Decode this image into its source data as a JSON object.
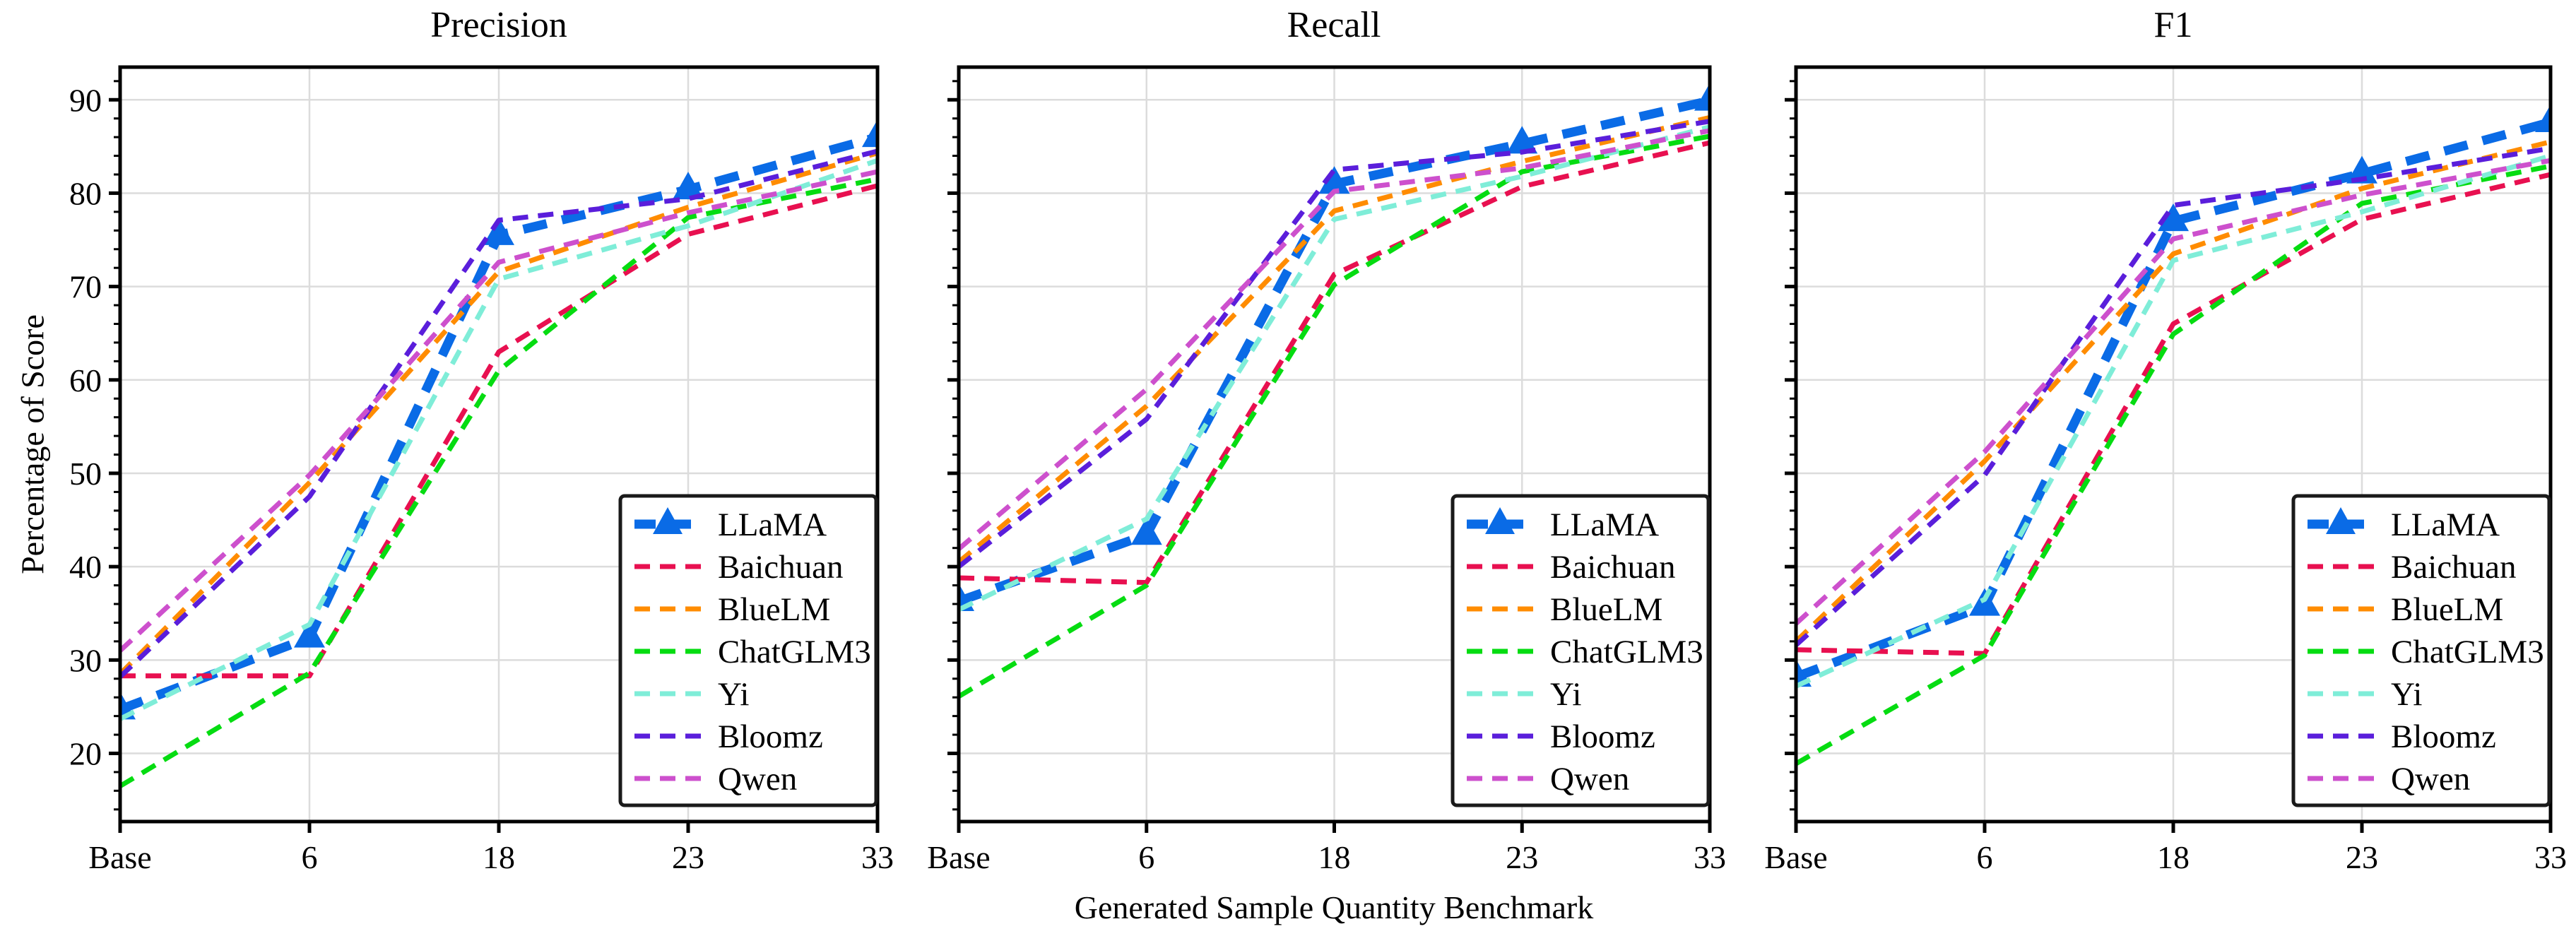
{
  "figure": {
    "background": "#FFFFFF"
  },
  "labels": {
    "ylabel": "Percentage of Score",
    "xlabel": "Generated Sample Quantity Benchmark"
  },
  "axes": {
    "categories": [
      "Base",
      "6",
      "18",
      "23",
      "33"
    ],
    "y_ticks": [
      20,
      30,
      40,
      50,
      60,
      70,
      80,
      90
    ],
    "ylim": [
      12.7,
      93.5
    ],
    "minor_tick_step": 2,
    "grid": true,
    "grid_color": "#DCDCDC",
    "axis_color": "#000000"
  },
  "legend": {
    "position": "lower right",
    "entries": [
      "LLaMA",
      "Baichuan",
      "BlueLM",
      "ChatGLM3",
      "Yi",
      "Bloomz",
      "Qwen"
    ],
    "border_color": "#1A1A1A"
  },
  "series_styles": [
    {
      "name": "LLaMA",
      "color": "#0A6BE6",
      "dash": "long",
      "thick": true,
      "marker": "triangle-up"
    },
    {
      "name": "Baichuan",
      "color": "#E81050",
      "dash": "normal",
      "thick": false,
      "marker": "none"
    },
    {
      "name": "BlueLM",
      "color": "#FF8C00",
      "dash": "normal",
      "thick": false,
      "marker": "none"
    },
    {
      "name": "ChatGLM3",
      "color": "#05DC11",
      "dash": "normal",
      "thick": false,
      "marker": "none"
    },
    {
      "name": "Yi",
      "color": "#7FEDD8",
      "dash": "normal",
      "thick": false,
      "marker": "none"
    },
    {
      "name": "Bloomz",
      "color": "#5A1EDB",
      "dash": "normal",
      "thick": false,
      "marker": "none"
    },
    {
      "name": "Qwen",
      "color": "#CD50CD",
      "dash": "normal",
      "thick": false,
      "marker": "none"
    }
  ],
  "chart_data": [
    {
      "type": "line",
      "title": "Precision",
      "xlabel": "",
      "ylabel": "Percentage of Score",
      "x": [
        "Base",
        "6",
        "18",
        "23",
        "33"
      ],
      "ylim": [
        12.7,
        93.5
      ],
      "series": [
        {
          "name": "LLaMA",
          "values": [
            24.7,
            32.4,
            75.5,
            80.4,
            86.0
          ]
        },
        {
          "name": "Baichuan",
          "values": [
            28.3,
            28.3,
            63.0,
            75.6,
            80.8
          ]
        },
        {
          "name": "BlueLM",
          "values": [
            28.5,
            49.0,
            71.6,
            78.5,
            84.3
          ]
        },
        {
          "name": "ChatGLM3",
          "values": [
            16.5,
            28.6,
            61.0,
            77.4,
            81.5
          ]
        },
        {
          "name": "Yi",
          "values": [
            23.7,
            33.8,
            70.8,
            76.5,
            83.5
          ]
        },
        {
          "name": "Bloomz",
          "values": [
            28.2,
            47.5,
            77.1,
            79.4,
            84.5
          ]
        },
        {
          "name": "Qwen",
          "values": [
            31.0,
            49.8,
            72.6,
            77.9,
            82.3
          ]
        }
      ]
    },
    {
      "type": "line",
      "title": "Recall",
      "xlabel": "Generated Sample Quantity Benchmark",
      "ylabel": "",
      "x": [
        "Base",
        "6",
        "18",
        "23",
        "33"
      ],
      "ylim": [
        12.7,
        93.5
      ],
      "series": [
        {
          "name": "LLaMA",
          "values": [
            36.3,
            43.4,
            81.0,
            85.3,
            89.9
          ]
        },
        {
          "name": "Baichuan",
          "values": [
            38.8,
            38.3,
            71.3,
            80.7,
            85.4
          ]
        },
        {
          "name": "BlueLM",
          "values": [
            40.5,
            57.2,
            78.1,
            83.4,
            88.1
          ]
        },
        {
          "name": "ChatGLM3",
          "values": [
            26.1,
            38.0,
            70.2,
            82.3,
            86.1
          ]
        },
        {
          "name": "Yi",
          "values": [
            35.4,
            45.1,
            77.2,
            81.8,
            87.1
          ]
        },
        {
          "name": "Bloomz",
          "values": [
            40.0,
            55.8,
            82.5,
            84.4,
            87.7
          ]
        },
        {
          "name": "Qwen",
          "values": [
            41.9,
            59.0,
            80.2,
            82.7,
            86.7
          ]
        }
      ]
    },
    {
      "type": "line",
      "title": "F1",
      "xlabel": "",
      "ylabel": "",
      "x": [
        "Base",
        "6",
        "18",
        "23",
        "33"
      ],
      "ylim": [
        12.7,
        93.5
      ],
      "series": [
        {
          "name": "LLaMA",
          "values": [
            28.2,
            35.8,
            77.0,
            82.1,
            87.6
          ]
        },
        {
          "name": "Baichuan",
          "values": [
            31.1,
            30.7,
            66.0,
            77.2,
            82.0
          ]
        },
        {
          "name": "BlueLM",
          "values": [
            32.0,
            51.3,
            73.5,
            80.5,
            85.5
          ]
        },
        {
          "name": "ChatGLM3",
          "values": [
            18.9,
            30.5,
            64.9,
            78.9,
            82.9
          ]
        },
        {
          "name": "Yi",
          "values": [
            27.2,
            36.5,
            72.8,
            78.0,
            84.0
          ]
        },
        {
          "name": "Bloomz",
          "values": [
            31.6,
            49.8,
            78.7,
            81.5,
            84.8
          ]
        },
        {
          "name": "Qwen",
          "values": [
            33.9,
            52.3,
            75.1,
            79.8,
            83.5
          ]
        }
      ]
    }
  ]
}
